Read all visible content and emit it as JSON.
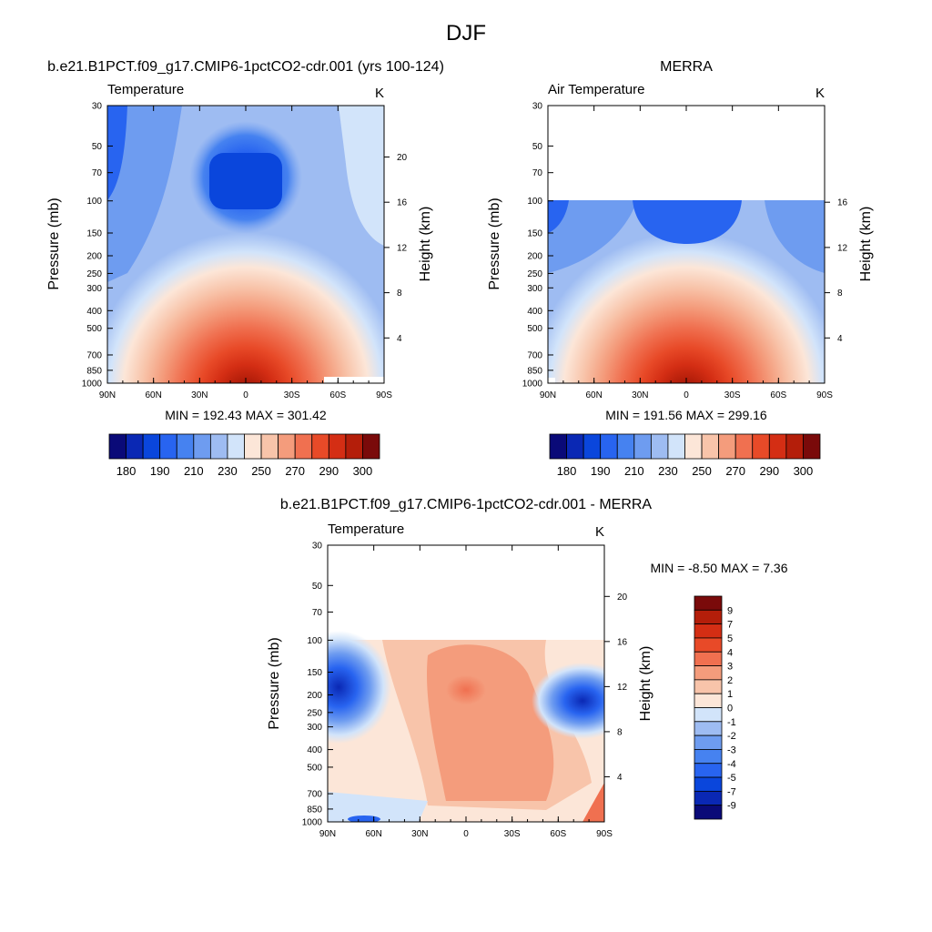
{
  "title": "DJF",
  "panels": [
    {
      "id": "model",
      "case_title": "b.e21.B1PCT.f09_g17.CMIP6-1pctCO2-cdr.001 (yrs 100-124)",
      "var_label": "Temperature",
      "units": "K",
      "y_title": "Pressure (mb)",
      "r_title": "Height (km)",
      "stats": "MIN = 192.43  MAX = 301.42"
    },
    {
      "id": "obs",
      "case_title": "MERRA",
      "var_label": "Air Temperature",
      "units": "K",
      "y_title": "Pressure (mb)",
      "r_title": "Height (km)",
      "stats": "MIN = 191.56  MAX = 299.16"
    },
    {
      "id": "diff",
      "case_title": "b.e21.B1PCT.f09_g17.CMIP6-1pctCO2-cdr.001 - MERRA",
      "var_label": "Temperature",
      "units": "K",
      "y_title": "Pressure (mb)",
      "r_title": "Height (km)",
      "stats": "MIN =  -8.50  MAX =   7.36"
    }
  ],
  "chart_data": [
    {
      "type": "heatmap",
      "panel": "model",
      "title": "Temperature",
      "xlabel": "",
      "ylabel": "Pressure (mb)",
      "y2label": "Height (km)",
      "x_ticks": [
        "90N",
        "60N",
        "30N",
        "0",
        "30S",
        "60S",
        "90S"
      ],
      "y_ticks": [
        30,
        50,
        70,
        100,
        150,
        200,
        250,
        300,
        400,
        500,
        700,
        850,
        1000
      ],
      "y2_ticks": [
        4,
        8,
        12,
        16,
        20
      ],
      "ylim": [
        30,
        1000
      ],
      "xlim": [
        90,
        -90
      ],
      "field_summary": "Warm lower troposphere peaking near equator (~300 K), cold tropical tropopause minimum near 100 mb (~192 K)",
      "min": 192.43,
      "max": 301.42,
      "colorbar": {
        "levels": [
          180,
          185,
          190,
          200,
          210,
          220,
          230,
          240,
          250,
          260,
          270,
          280,
          290,
          295,
          300
        ],
        "tick_labels": [
          "180",
          "190",
          "210",
          "230",
          "250",
          "270",
          "290",
          "300"
        ],
        "colors": [
          "#0a0a78",
          "#0a28b4",
          "#0a46dc",
          "#2864f0",
          "#4682f0",
          "#6e9cf0",
          "#9ebcf2",
          "#d2e4fa",
          "#fce6d8",
          "#f8c4aa",
          "#f49c7c",
          "#f07050",
          "#e84a28",
          "#d42e14",
          "#b41e0a",
          "#7a0a0a"
        ]
      }
    },
    {
      "type": "heatmap",
      "panel": "obs",
      "title": "Air Temperature",
      "xlabel": "",
      "ylabel": "Pressure (mb)",
      "y2label": "Height (km)",
      "x_ticks": [
        "90N",
        "60N",
        "30N",
        "0",
        "30S",
        "60S",
        "90S"
      ],
      "y_ticks": [
        30,
        50,
        70,
        100,
        150,
        200,
        250,
        300,
        400,
        500,
        700,
        850,
        1000
      ],
      "y2_ticks": [
        4,
        8,
        12,
        16
      ],
      "ylim": [
        30,
        1000
      ],
      "xlim": [
        90,
        -90
      ],
      "field_summary": "No data above 100 mb; similar structure to model",
      "min": 191.56,
      "max": 299.16,
      "colorbar": {
        "levels": [
          180,
          185,
          190,
          200,
          210,
          220,
          230,
          240,
          250,
          260,
          270,
          280,
          290,
          295,
          300
        ],
        "tick_labels": [
          "180",
          "190",
          "210",
          "230",
          "250",
          "270",
          "290",
          "300"
        ],
        "colors": [
          "#0a0a78",
          "#0a28b4",
          "#0a46dc",
          "#2864f0",
          "#4682f0",
          "#6e9cf0",
          "#9ebcf2",
          "#d2e4fa",
          "#fce6d8",
          "#f8c4aa",
          "#f49c7c",
          "#f07050",
          "#e84a28",
          "#d42e14",
          "#b41e0a",
          "#7a0a0a"
        ]
      }
    },
    {
      "type": "heatmap",
      "panel": "diff",
      "title": "Temperature",
      "xlabel": "",
      "ylabel": "Pressure (mb)",
      "y2label": "Height (km)",
      "x_ticks": [
        "90N",
        "60N",
        "30N",
        "0",
        "30S",
        "60S",
        "90S"
      ],
      "y_ticks": [
        30,
        50,
        70,
        100,
        150,
        200,
        250,
        300,
        400,
        500,
        700,
        850,
        1000
      ],
      "y2_ticks": [
        4,
        8,
        12,
        16,
        20
      ],
      "ylim": [
        30,
        1000
      ],
      "xlim": [
        90,
        -90
      ],
      "field_summary": "Warm bias 2-5 K in tropics, cold bias up to -9 K near high-latitude tropopause",
      "min": -8.5,
      "max": 7.36,
      "colorbar": {
        "levels": [
          -9,
          -7,
          -5,
          -4,
          -3,
          -2,
          -1,
          0,
          1,
          2,
          3,
          4,
          5,
          7,
          9
        ],
        "tick_labels": [
          "-9",
          "-7",
          "-5",
          "-4",
          "-3",
          "-2",
          "-1",
          "0",
          "1",
          "2",
          "3",
          "4",
          "5",
          "7",
          "9"
        ],
        "colors": [
          "#0a0a78",
          "#0a28b4",
          "#0a46dc",
          "#2864f0",
          "#4682f0",
          "#6e9cf0",
          "#9ebcf2",
          "#d2e4fa",
          "#fce6d8",
          "#f8c4aa",
          "#f49c7c",
          "#f07050",
          "#e84a28",
          "#d42e14",
          "#b41e0a",
          "#7a0a0a"
        ]
      }
    }
  ]
}
